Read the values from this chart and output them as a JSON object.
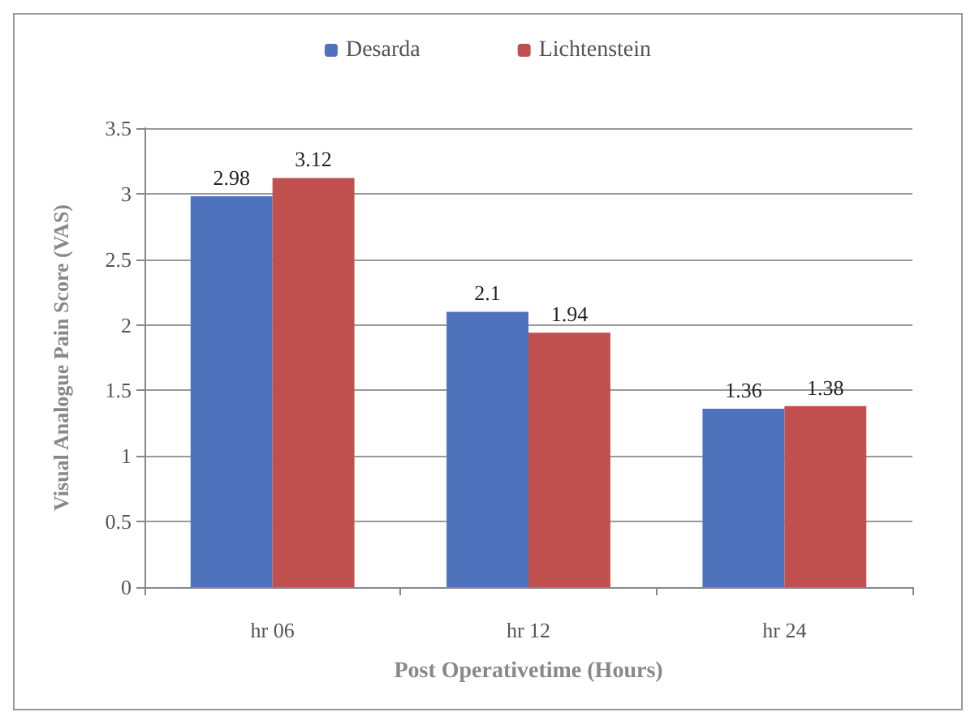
{
  "chart_data": {
    "type": "bar",
    "xlabel": "Post Operativetime (Hours)",
    "ylabel": "Visual Analogue Pain Score (VAS)",
    "categories": [
      "hr 06",
      "hr 12",
      "hr 24"
    ],
    "series": [
      {
        "name": "Desarda",
        "color": "#4f72bd",
        "values": [
          2.98,
          2.1,
          1.36
        ]
      },
      {
        "name": "Lichtenstein",
        "color": "#c0504d",
        "values": [
          3.12,
          1.94,
          1.38
        ]
      }
    ],
    "ylim": [
      0,
      3.5
    ],
    "yticks": [
      0,
      0.5,
      1,
      1.5,
      2,
      2.5,
      3,
      3.5
    ],
    "grid": "y",
    "legend": "top",
    "data_labels": true
  }
}
